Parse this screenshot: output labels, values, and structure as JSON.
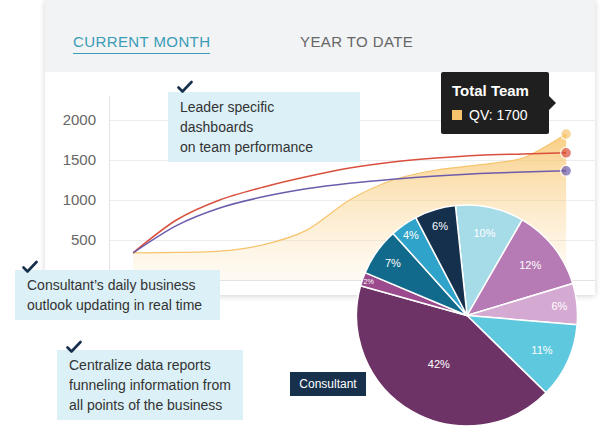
{
  "tabs": [
    "CURRENT MONTH",
    "YEAR TO DATE"
  ],
  "callouts": [
    [
      "Leader specific dashboards",
      "on team performance"
    ],
    [
      "Consultant’s daily business",
      "outlook updating in real time"
    ],
    [
      "Centralize data reports",
      "funneling information from",
      "all points of the business"
    ]
  ],
  "chart_data": [
    {
      "type": "line",
      "x": [
        0,
        3,
        6,
        9,
        12,
        15,
        18,
        21,
        24,
        27,
        30
      ],
      "xlim": [
        -1.6,
        32
      ],
      "ylim": [
        0,
        2300
      ],
      "yticks": [
        500,
        1000,
        1500,
        2000
      ],
      "grid": true,
      "tick_labels": "y",
      "tooltip": {
        "title": "Total Team",
        "text": "QV: 1700"
      },
      "series": [
        {
          "type": "area",
          "color": "#f7c46c",
          "marker": "end",
          "values": [
            340,
            345,
            360,
            440,
            620,
            1000,
            1250,
            1375,
            1440,
            1525,
            1825
          ]
        },
        {
          "type": "line",
          "color": "#d9503f",
          "marker": "end",
          "values": [
            340,
            750,
            1000,
            1160,
            1290,
            1400,
            1475,
            1525,
            1560,
            1575,
            1590
          ]
        },
        {
          "type": "line",
          "color": "#6c5cac",
          "marker": "end",
          "values": [
            340,
            680,
            900,
            1040,
            1140,
            1210,
            1260,
            1300,
            1330,
            1350,
            1365
          ]
        }
      ]
    },
    {
      "type": "pie",
      "values": [
        10,
        12,
        6,
        11,
        42,
        2,
        7,
        4,
        6
      ],
      "value_labels": [
        "10%",
        "12%",
        "6%",
        "11%",
        "42%",
        "2%",
        "7%",
        "4%",
        "6%"
      ],
      "colors": [
        "#a6dbe8",
        "#b67bb4",
        "#d5aad2",
        "#5ec8de",
        "#6e3366",
        "#9b4b8d",
        "#11698b",
        "#2fa3c9",
        "#15304c"
      ],
      "data_labels": true,
      "annotations": [
        "Consultant"
      ]
    }
  ]
}
